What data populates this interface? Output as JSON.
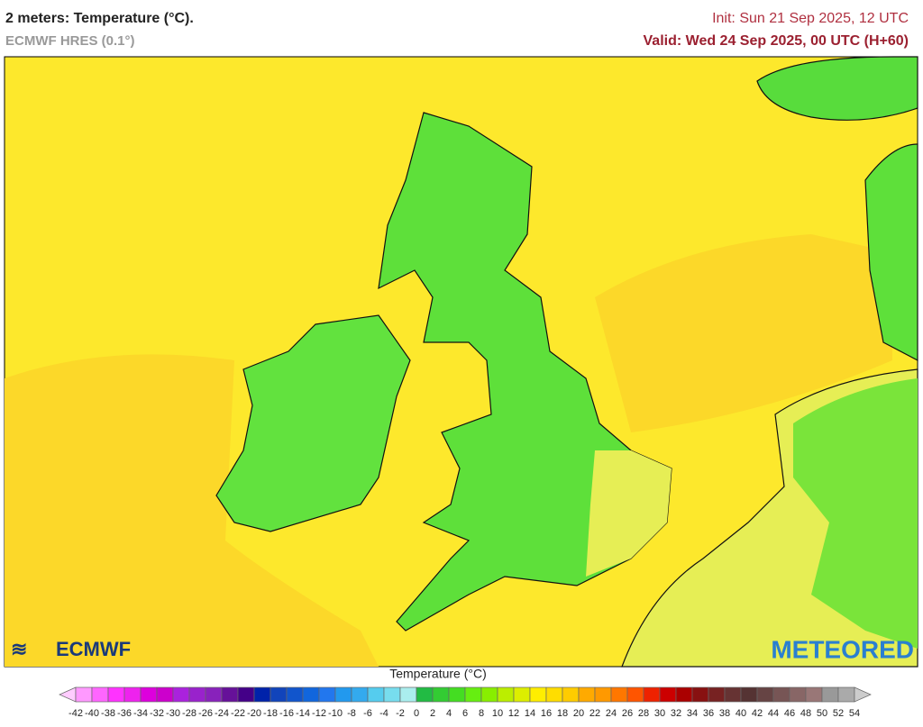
{
  "header": {
    "title": "2 meters: Temperature (°C).",
    "subtitle": "ECMWF HRES (0.1°)",
    "init": "Init: Sun 21 Sep 2025, 12 UTC",
    "valid": "Valid: Wed 24 Sep 2025, 00 UTC (H+60)"
  },
  "logos": {
    "left": "ECMWF",
    "right": "METEORED"
  },
  "colorbar": {
    "title": "Temperature (°C)",
    "ticks": [
      -42,
      -40,
      -38,
      -36,
      -34,
      -32,
      -30,
      -28,
      -26,
      -24,
      -22,
      -20,
      -18,
      -16,
      -14,
      -12,
      -10,
      -8,
      -6,
      -4,
      -2,
      0,
      2,
      4,
      6,
      8,
      10,
      12,
      14,
      16,
      18,
      20,
      22,
      24,
      26,
      28,
      30,
      32,
      34,
      36,
      38,
      40,
      42,
      44,
      46,
      48,
      50,
      52,
      54
    ],
    "colors": [
      "#ffccff",
      "#ff99ff",
      "#ff66ff",
      "#ff33ff",
      "#ee22ee",
      "#dd00dd",
      "#cc00cc",
      "#aa22dd",
      "#9922cc",
      "#8822bb",
      "#661199",
      "#440088",
      "#0022aa",
      "#1144bb",
      "#1155cc",
      "#1166dd",
      "#2277ee",
      "#2299ee",
      "#33aaee",
      "#55ccee",
      "#77ddee",
      "#aaeeee",
      "#22bb44",
      "#33cc33",
      "#44dd22",
      "#66ee11",
      "#88ee00",
      "#bbee00",
      "#ddee00",
      "#ffee00",
      "#ffdd00",
      "#ffcc00",
      "#ffaa00",
      "#ff9900",
      "#ff7700",
      "#ff5500",
      "#ee2200",
      "#cc0000",
      "#aa0000",
      "#881111",
      "#772222",
      "#663333",
      "#553333",
      "#664444",
      "#775555",
      "#886666",
      "#997777",
      "#999999",
      "#aaaaaa",
      "#cccccc"
    ]
  }
}
